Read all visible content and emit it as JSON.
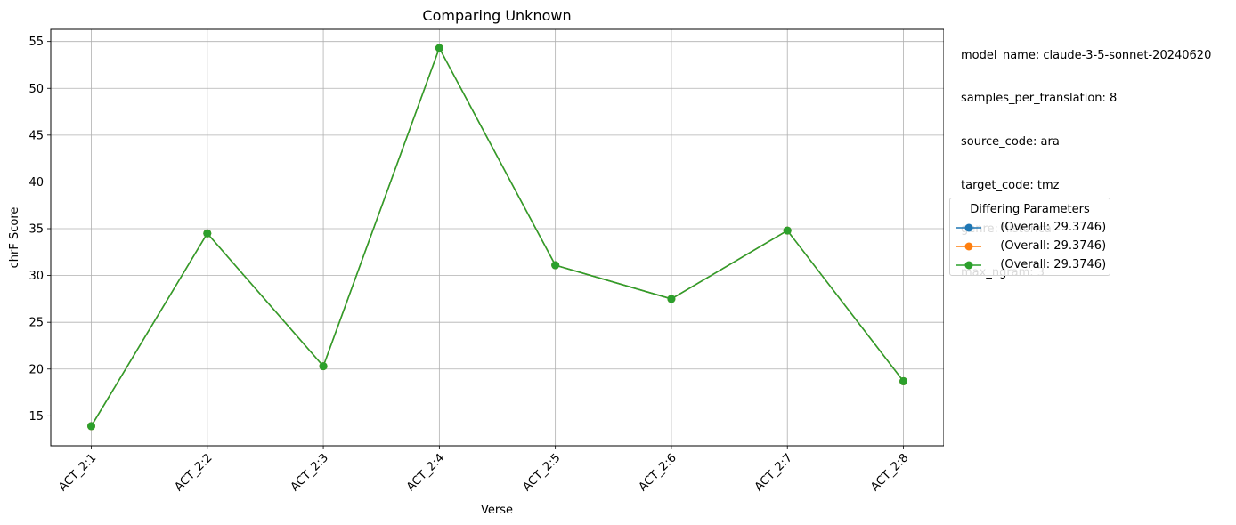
{
  "chart_data": {
    "type": "line",
    "title": "Comparing Unknown",
    "xlabel": "Verse",
    "ylabel": "chrF Score",
    "categories": [
      "ACT_2:1",
      "ACT_2:2",
      "ACT_2:3",
      "ACT_2:4",
      "ACT_2:5",
      "ACT_2:6",
      "ACT_2:7",
      "ACT_2:8"
    ],
    "ylim": [
      11.8,
      56.3
    ],
    "yticks": [
      15,
      20,
      25,
      30,
      35,
      40,
      45,
      50,
      55
    ],
    "grid": true,
    "legend_position": "center-right-outside",
    "legend_title": "Differing Parameters",
    "series": [
      {
        "name": "  (Overall: 29.3746)",
        "color": "#1f77b4",
        "values": [
          13.9,
          34.5,
          20.3,
          54.3,
          31.1,
          27.5,
          34.8,
          18.7
        ]
      },
      {
        "name": "  (Overall: 29.3746)",
        "color": "#ff7f0e",
        "values": [
          13.9,
          34.5,
          20.3,
          54.3,
          31.1,
          27.5,
          34.8,
          18.7
        ]
      },
      {
        "name": "  (Overall: 29.3746)",
        "color": "#2ca02c",
        "values": [
          13.9,
          34.5,
          20.3,
          54.3,
          31.1,
          27.5,
          34.8,
          18.7
        ]
      }
    ]
  },
  "metadata_lines": [
    "model_name: claude-3-5-sonnet-20240620",
    "samples_per_translation: 8",
    "source_code: ara",
    "target_code: tmz",
    "genre: historical",
    "max_ngram: 3"
  ]
}
